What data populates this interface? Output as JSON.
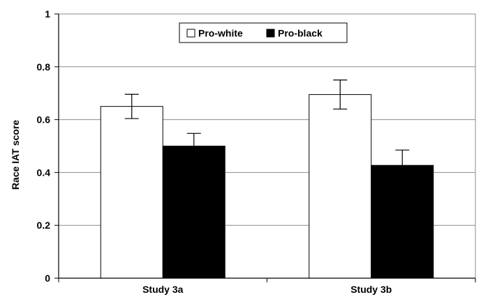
{
  "chart_data": {
    "type": "bar",
    "title": "",
    "xlabel": "",
    "ylabel": "Race IAT score",
    "ylim": [
      0,
      1
    ],
    "yticks": [
      "0",
      "0.2",
      "0.4",
      "0.6",
      "0.8",
      "1"
    ],
    "grid": true,
    "legend_position": "top-center",
    "categories": [
      "Study 3a",
      "Study 3b"
    ],
    "series": [
      {
        "name": "Pro-white",
        "fill": "#ffffff",
        "values": [
          0.65,
          0.695
        ],
        "error": [
          0.046,
          0.055
        ]
      },
      {
        "name": "Pro-black",
        "fill": "#000000",
        "values": [
          0.5,
          0.427
        ],
        "error": [
          0.048,
          0.058
        ]
      }
    ]
  }
}
